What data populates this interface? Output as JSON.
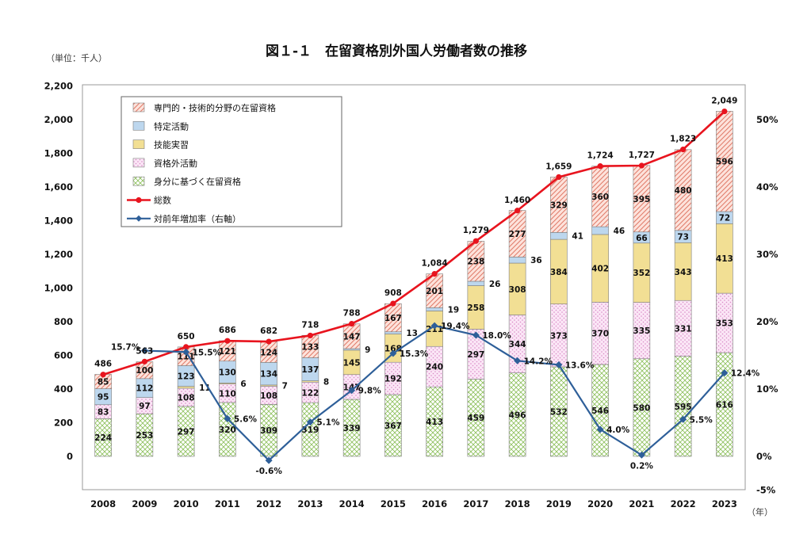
{
  "chart_data": {
    "type": "bar",
    "title": "図１-１　在留資格別外国人労働者数の推移",
    "unit_label": "（単位：千人）",
    "x_unit_label": "（年）",
    "categories": [
      "2008",
      "2009",
      "2010",
      "2011",
      "2012",
      "2013",
      "2014",
      "2015",
      "2016",
      "2017",
      "2018",
      "2019",
      "2020",
      "2021",
      "2022",
      "2023"
    ],
    "ylim_left": [
      0,
      2200
    ],
    "yticks_left": [
      "0",
      "200",
      "400",
      "600",
      "800",
      "1,000",
      "1,200",
      "1,400",
      "1,600",
      "1,800",
      "2,000",
      "2,200"
    ],
    "ylim_right": [
      -5,
      50
    ],
    "yticks_right": [
      "-5%",
      "0%",
      "10%",
      "20%",
      "30%",
      "40%",
      "50%"
    ],
    "legend_position": "top-left",
    "stacked_series": [
      {
        "name": "身分に基づく在留資格",
        "color": "#9bc86a",
        "pattern": "crosshatch",
        "values": [
          224,
          253,
          297,
          320,
          309,
          319,
          339,
          367,
          413,
          459,
          496,
          532,
          546,
          580,
          595,
          616
        ],
        "labels": [
          "224",
          "253",
          "297",
          "320",
          "309",
          "319",
          "339",
          "367",
          "413",
          "459",
          "496",
          "532",
          "546",
          "580",
          "595",
          "616"
        ]
      },
      {
        "name": "資格外活動",
        "color": "#e89ed8",
        "pattern": "dots",
        "values": [
          83,
          97,
          108,
          110,
          108,
          122,
          147,
          192,
          240,
          297,
          344,
          373,
          370,
          335,
          331,
          353
        ],
        "labels": [
          "83",
          "97",
          "108",
          "110",
          "108",
          "122",
          "147",
          "192",
          "240",
          "297",
          "344",
          "373",
          "370",
          "335",
          "331",
          "353"
        ]
      },
      {
        "name": "技能実習",
        "color": "#f2df94",
        "pattern": "solid",
        "values": [
          0,
          0,
          11,
          6,
          7,
          8,
          145,
          168,
          211,
          258,
          308,
          384,
          402,
          352,
          343,
          413
        ],
        "labels": [
          "",
          "",
          "11",
          "6",
          "7",
          "8",
          "145",
          "168",
          "211",
          "258",
          "308",
          "384",
          "402",
          "352",
          "343",
          "413"
        ]
      },
      {
        "name": "特定活動",
        "color": "#bdd7ee",
        "pattern": "solid",
        "values": [
          95,
          112,
          123,
          130,
          134,
          137,
          9,
          13,
          19,
          26,
          36,
          41,
          46,
          66,
          73,
          72
        ],
        "labels": [
          "95",
          "112",
          "123",
          "130",
          "134",
          "137",
          "9",
          "13",
          "19",
          "26",
          "36",
          "41",
          "46",
          "66",
          "73",
          "72"
        ]
      },
      {
        "name": "専門的・技術的分野の在留資格",
        "color": "#f0a090",
        "pattern": "diagonal",
        "values": [
          85,
          100,
          111,
          121,
          124,
          133,
          147,
          167,
          201,
          238,
          277,
          329,
          360,
          395,
          480,
          596
        ],
        "labels": [
          "85",
          "100",
          "111",
          "121",
          "124",
          "133",
          "147",
          "167",
          "201",
          "238",
          "277",
          "329",
          "360",
          "395",
          "480",
          "596"
        ]
      }
    ],
    "total_series": {
      "name": "総数",
      "color": "#e8141e",
      "values": [
        486,
        563,
        650,
        686,
        682,
        718,
        788,
        908,
        1084,
        1279,
        1460,
        1659,
        1724,
        1727,
        1823,
        2049
      ],
      "labels": [
        "486",
        "563",
        "650",
        "686",
        "682",
        "718",
        "788",
        "908",
        "1,084",
        "1,279",
        "1,460",
        "1,659",
        "1,724",
        "1,727",
        "1,823",
        "2,049"
      ]
    },
    "rate_series": {
      "name": "対前年増加率（右軸）",
      "color": "#2e5f99",
      "axis": "right",
      "values": [
        null,
        15.7,
        15.5,
        5.6,
        -0.6,
        5.1,
        9.8,
        15.3,
        19.4,
        18.0,
        14.2,
        13.6,
        4.0,
        0.2,
        5.5,
        12.4
      ],
      "labels": [
        "",
        "15.7%",
        "15.5%",
        "5.6%",
        "-0.6%",
        "5.1%",
        "9.8%",
        "15.3%",
        "19.4%",
        "18.0%",
        "14.2%",
        "13.6%",
        "4.0%",
        "0.2%",
        "5.5%",
        "12.4%"
      ]
    },
    "legend_order": [
      "専門的・技術的分野の在留資格",
      "特定活動",
      "技能実習",
      "資格外活動",
      "身分に基づく在留資格",
      "総数",
      "対前年増加率（右軸）"
    ]
  }
}
